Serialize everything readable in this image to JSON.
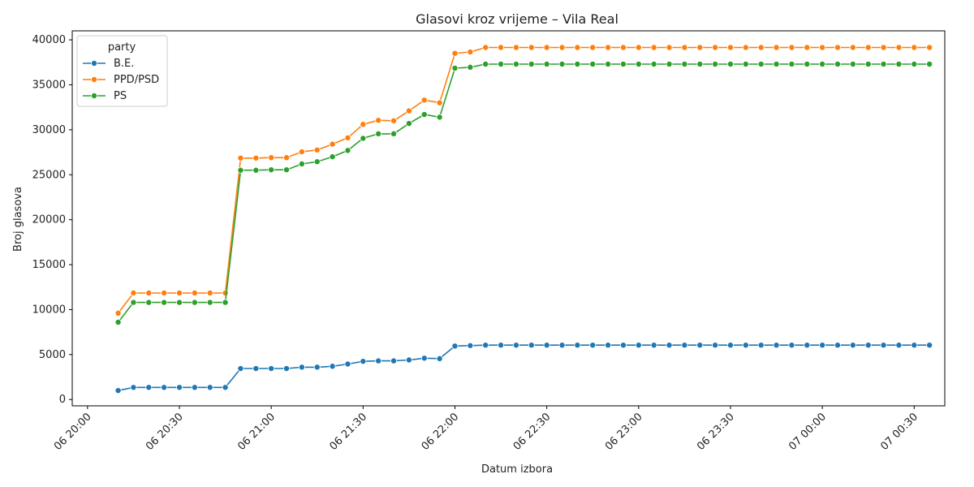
{
  "chart_data": {
    "type": "line",
    "title": "Glasovi kroz vrijeme – Vila Real",
    "xlabel": "Datum izbora",
    "ylabel": "Broj glasova",
    "legend_title": "party",
    "legend_position": "top-left",
    "grid": false,
    "x_unit": "time",
    "xlim": [
      "06 19:55",
      "07 00:40"
    ],
    "ylim": [
      -700,
      41000
    ],
    "x_ticks": [
      "06 20:00",
      "06 20:30",
      "06 21:00",
      "06 21:30",
      "06 22:00",
      "06 22:30",
      "06 23:00",
      "06 23:30",
      "07 00:00",
      "07 00:30"
    ],
    "y_ticks": [
      0,
      5000,
      10000,
      15000,
      20000,
      25000,
      30000,
      35000,
      40000
    ],
    "x": [
      "06 20:10",
      "06 20:15",
      "06 20:20",
      "06 20:25",
      "06 20:30",
      "06 20:35",
      "06 20:40",
      "06 20:45",
      "06 20:50",
      "06 20:55",
      "06 21:00",
      "06 21:05",
      "06 21:10",
      "06 21:15",
      "06 21:20",
      "06 21:25",
      "06 21:30",
      "06 21:35",
      "06 21:40",
      "06 21:45",
      "06 21:50",
      "06 21:55",
      "06 22:00",
      "06 22:05",
      "06 22:10",
      "06 22:15",
      "06 22:20",
      "06 22:25",
      "06 22:30",
      "06 22:35",
      "06 22:40",
      "06 22:45",
      "06 22:50",
      "06 22:55",
      "06 23:00",
      "06 23:05",
      "06 23:10",
      "06 23:15",
      "06 23:20",
      "06 23:25",
      "06 23:30",
      "06 23:35",
      "06 23:40",
      "06 23:45",
      "06 23:50",
      "06 23:55",
      "07 00:00",
      "07 00:05",
      "07 00:10",
      "07 00:15",
      "07 00:20",
      "07 00:25",
      "07 00:30",
      "07 00:35"
    ],
    "series": [
      {
        "name": "B.E.",
        "color": "#1f77b4",
        "values": [
          1000,
          1350,
          1350,
          1350,
          1350,
          1350,
          1350,
          1350,
          3450,
          3450,
          3450,
          3450,
          3600,
          3600,
          3700,
          3950,
          4250,
          4300,
          4300,
          4400,
          4600,
          4550,
          5950,
          6000,
          6050,
          6050,
          6050,
          6050,
          6050,
          6050,
          6050,
          6050,
          6050,
          6050,
          6050,
          6050,
          6050,
          6050,
          6050,
          6050,
          6050,
          6050,
          6050,
          6050,
          6050,
          6050,
          6050,
          6050,
          6050,
          6050,
          6050,
          6050,
          6050,
          6050
        ]
      },
      {
        "name": "PPD/PSD",
        "color": "#ff7f0e",
        "values": [
          9600,
          11850,
          11850,
          11850,
          11850,
          11850,
          11850,
          11850,
          26850,
          26850,
          26900,
          26900,
          27550,
          27750,
          28400,
          29100,
          30600,
          31050,
          31000,
          32100,
          33300,
          33000,
          38500,
          38650,
          39150,
          39150,
          39150,
          39150,
          39150,
          39150,
          39150,
          39150,
          39150,
          39150,
          39150,
          39150,
          39150,
          39150,
          39150,
          39150,
          39150,
          39150,
          39150,
          39150,
          39150,
          39150,
          39150,
          39150,
          39150,
          39150,
          39150,
          39150,
          39150,
          39150
        ]
      },
      {
        "name": "PS",
        "color": "#2ca02c",
        "values": [
          8600,
          10800,
          10800,
          10800,
          10800,
          10800,
          10800,
          10800,
          25500,
          25500,
          25550,
          25550,
          26200,
          26450,
          27000,
          27700,
          29050,
          29550,
          29550,
          30700,
          31700,
          31400,
          36850,
          36950,
          37300,
          37300,
          37300,
          37300,
          37300,
          37300,
          37300,
          37300,
          37300,
          37300,
          37300,
          37300,
          37300,
          37300,
          37300,
          37300,
          37300,
          37300,
          37300,
          37300,
          37300,
          37300,
          37300,
          37300,
          37300,
          37300,
          37300,
          37300,
          37300,
          37300
        ]
      }
    ]
  }
}
